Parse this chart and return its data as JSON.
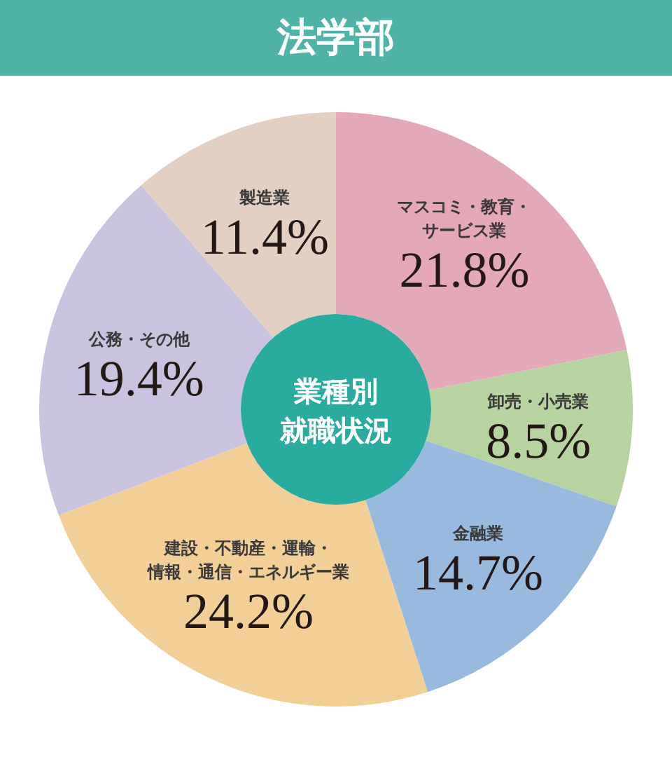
{
  "chart_data": {
    "type": "donut",
    "title": "法学部",
    "subtitle": "業種別就職状況",
    "categories": [
      "マスコミ・教育・サービス業",
      "卸売・小売業",
      "金融業",
      "建設・不動産・運輸・情報・通信・エネルギー業",
      "公務・その他",
      "製造業"
    ],
    "values": [
      21.8,
      8.5,
      14.7,
      24.2,
      19.4,
      11.4
    ],
    "colors": [
      "#e4a9b8",
      "#b6d3a0",
      "#98badf",
      "#f2cf97",
      "#c9c3e0",
      "#e4cfc3"
    ],
    "value_labels": [
      "21.8%",
      "8.5%",
      "14.7%",
      "24.2%",
      "19.4%",
      "11.4%"
    ]
  }
}
